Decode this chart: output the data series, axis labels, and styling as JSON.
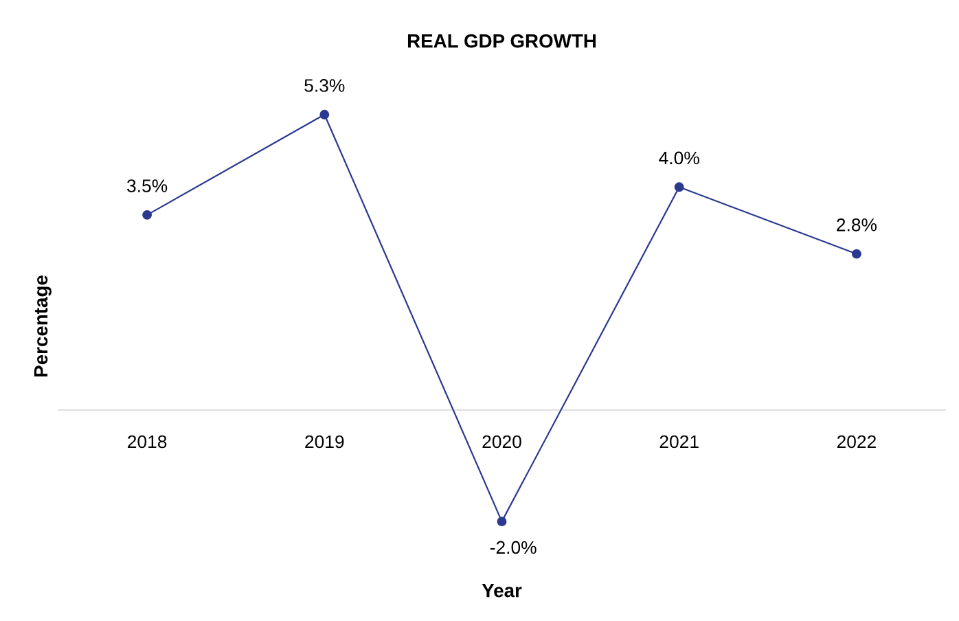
{
  "chart_data": {
    "type": "line",
    "title": "REAL GDP GROWTH",
    "xlabel": "Year",
    "ylabel": "Percentage",
    "categories": [
      "2018",
      "2019",
      "2020",
      "2021",
      "2022"
    ],
    "values": [
      3.5,
      5.3,
      -2.0,
      4.0,
      2.8
    ],
    "value_labels": [
      "3.5%",
      "5.3%",
      "-2.0%",
      "4.0%",
      "2.8%"
    ],
    "color": "#2b3990",
    "marker": "circle",
    "line_style": "solid",
    "grid": false,
    "legend": false
  }
}
